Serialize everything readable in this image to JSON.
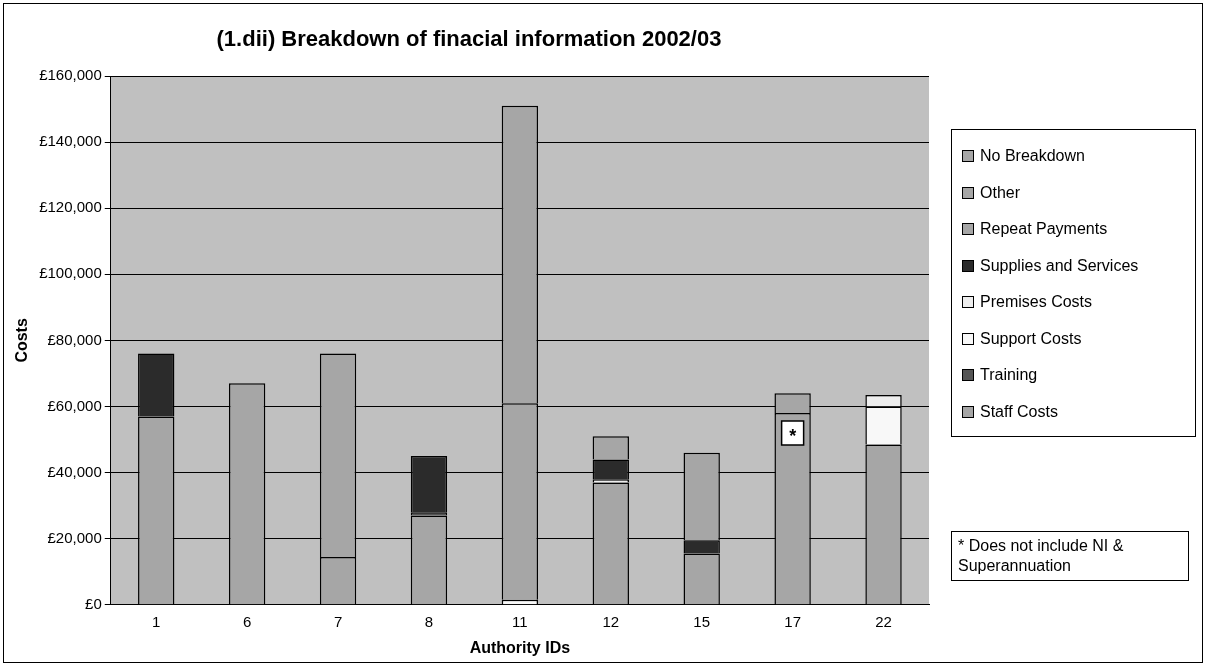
{
  "chart_data": {
    "type": "bar",
    "stacked": true,
    "title": "(1.dii) Breakdown of finacial information 2002/03",
    "xlabel": "Authority IDs",
    "ylabel": "Costs",
    "categories": [
      "1",
      "6",
      "7",
      "8",
      "11",
      "12",
      "15",
      "17",
      "22"
    ],
    "series": [
      {
        "name": "Staff Costs",
        "color": "#a6a6a6",
        "values": [
          57000,
          null,
          14500,
          27000,
          null,
          37000,
          15500,
          58000,
          48500
        ]
      },
      {
        "name": "Training",
        "color": "#555555",
        "values": [
          null,
          null,
          null,
          1000,
          null,
          null,
          null,
          null,
          null
        ]
      },
      {
        "name": "Support Costs",
        "color": "#f8f8f8",
        "values": [
          null,
          null,
          null,
          null,
          1500,
          null,
          null,
          null,
          11500
        ]
      },
      {
        "name": "Premises Costs",
        "color": "#eeeeee",
        "values": [
          null,
          null,
          null,
          null,
          null,
          1000,
          null,
          null,
          3500
        ]
      },
      {
        "name": "Supplies and Services",
        "color": "#2b2b2b",
        "values": [
          19000,
          null,
          null,
          17000,
          null,
          6000,
          4000,
          null,
          null
        ]
      },
      {
        "name": "Repeat Payments",
        "color": "#a6a6a6",
        "values": [
          null,
          null,
          null,
          null,
          59500,
          null,
          null,
          null,
          null
        ]
      },
      {
        "name": "Other",
        "color": "#a6a6a6",
        "values": [
          null,
          null,
          61500,
          null,
          90000,
          7000,
          26500,
          6000,
          null
        ]
      },
      {
        "name": "No Breakdown",
        "color": "#a6a6a6",
        "values": [
          null,
          67000,
          null,
          null,
          null,
          null,
          null,
          null,
          null
        ]
      }
    ],
    "ylim": [
      0,
      160000
    ],
    "yticks": [
      {
        "value": 0,
        "label": "£0"
      },
      {
        "value": 20000,
        "label": "£20,000"
      },
      {
        "value": 40000,
        "label": "£40,000"
      },
      {
        "value": 60000,
        "label": "£60,000"
      },
      {
        "value": 80000,
        "label": "£80,000"
      },
      {
        "value": 100000,
        "label": "£100,000"
      },
      {
        "value": 120000,
        "label": "£120,000"
      },
      {
        "value": 140000,
        "label": "£140,000"
      },
      {
        "value": 160000,
        "label": "£160,000"
      }
    ],
    "grid": "y",
    "legend": "right",
    "annotations": [
      {
        "text": "*",
        "x": "17",
        "y": 52000
      },
      "* Does not include NI & Superannuation"
    ]
  }
}
